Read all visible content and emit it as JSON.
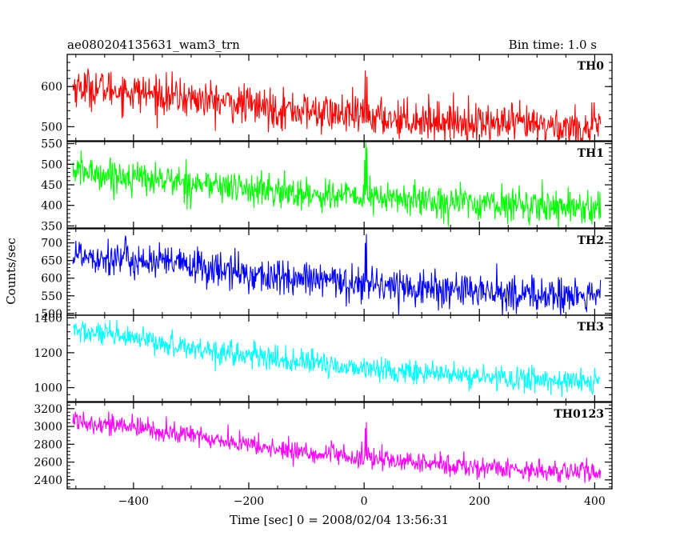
{
  "header": {
    "title": "ae080204135631_wam3_trn",
    "bin_time": "Bin time: 1.0 s"
  },
  "chart_data": {
    "type": "line",
    "xlabel": "Time [sec] 0 = 2008/02/04 13:56:31",
    "ylabel": "Counts/sec",
    "xlim": [
      -515,
      430
    ],
    "xticks": [
      -400,
      -200,
      0,
      200,
      400
    ],
    "x_start": -505,
    "x_end": 410,
    "bin_seconds": 1.0,
    "panels": [
      {
        "name": "TH0",
        "color": "#ff0000",
        "ylim": [
          465,
          680
        ],
        "yticks": [
          500,
          600
        ],
        "ytick_labels": [
          "500",
          "600"
        ],
        "trend": [
          [
            -505,
            600
          ],
          [
            -450,
            595
          ],
          [
            -300,
            570
          ],
          [
            -150,
            545
          ],
          [
            0,
            525
          ],
          [
            200,
            510
          ],
          [
            410,
            495
          ]
        ],
        "noise_sigma": 24,
        "spikes": [
          [
            2,
            640
          ],
          [
            5,
            625
          ]
        ]
      },
      {
        "name": "TH1",
        "color": "#00ff00",
        "ylim": [
          345,
          555
        ],
        "yticks": [
          350,
          400,
          450,
          500,
          550
        ],
        "ytick_labels": [
          "350",
          "400",
          "450",
          "500",
          "550"
        ],
        "trend": [
          [
            -505,
            485
          ],
          [
            -450,
            475
          ],
          [
            -300,
            455
          ],
          [
            -150,
            432
          ],
          [
            0,
            420
          ],
          [
            200,
            405
          ],
          [
            410,
            395
          ]
        ],
        "noise_sigma": 20,
        "spikes": [
          [
            1,
            510
          ],
          [
            3,
            555
          ],
          [
            5,
            540
          ]
        ]
      },
      {
        "name": "TH2",
        "color": "#0000ff",
        "ylim": [
          495,
          740
        ],
        "yticks": [
          500,
          550,
          600,
          650,
          700
        ],
        "ytick_labels": [
          "500",
          "550",
          "600",
          "650",
          "700"
        ],
        "trend": [
          [
            -505,
            670
          ],
          [
            -450,
            660
          ],
          [
            -300,
            635
          ],
          [
            -150,
            600
          ],
          [
            0,
            585
          ],
          [
            200,
            560
          ],
          [
            410,
            545
          ]
        ],
        "noise_sigma": 26,
        "spikes": [
          [
            2,
            700
          ],
          [
            4,
            725
          ]
        ]
      },
      {
        "name": "TH3",
        "color": "#00ffff",
        "ylim": [
          920,
          1415
        ],
        "yticks": [
          1000,
          1200,
          1400
        ],
        "ytick_labels": [
          "1000",
          "1200",
          "1400"
        ],
        "trend": [
          [
            -505,
            1330
          ],
          [
            -450,
            1300
          ],
          [
            -300,
            1230
          ],
          [
            -150,
            1160
          ],
          [
            0,
            1110
          ],
          [
            200,
            1060
          ],
          [
            410,
            1030
          ]
        ],
        "noise_sigma": 35,
        "spikes": [
          [
            0,
            1170
          ]
        ]
      },
      {
        "name": "TH0123",
        "color": "#ff00ff",
        "ylim": [
          2300,
          3270
        ],
        "yticks": [
          2400,
          2600,
          2800,
          3000,
          3200
        ],
        "ytick_labels": [
          "2400",
          "2600",
          "2800",
          "3000",
          "3200"
        ],
        "trend": [
          [
            -505,
            3080
          ],
          [
            -450,
            3030
          ],
          [
            -300,
            2900
          ],
          [
            -150,
            2740
          ],
          [
            0,
            2640
          ],
          [
            200,
            2540
          ],
          [
            410,
            2480
          ]
        ],
        "noise_sigma": 60,
        "spikes": [
          [
            2,
            2980
          ],
          [
            4,
            3050
          ]
        ]
      }
    ]
  }
}
